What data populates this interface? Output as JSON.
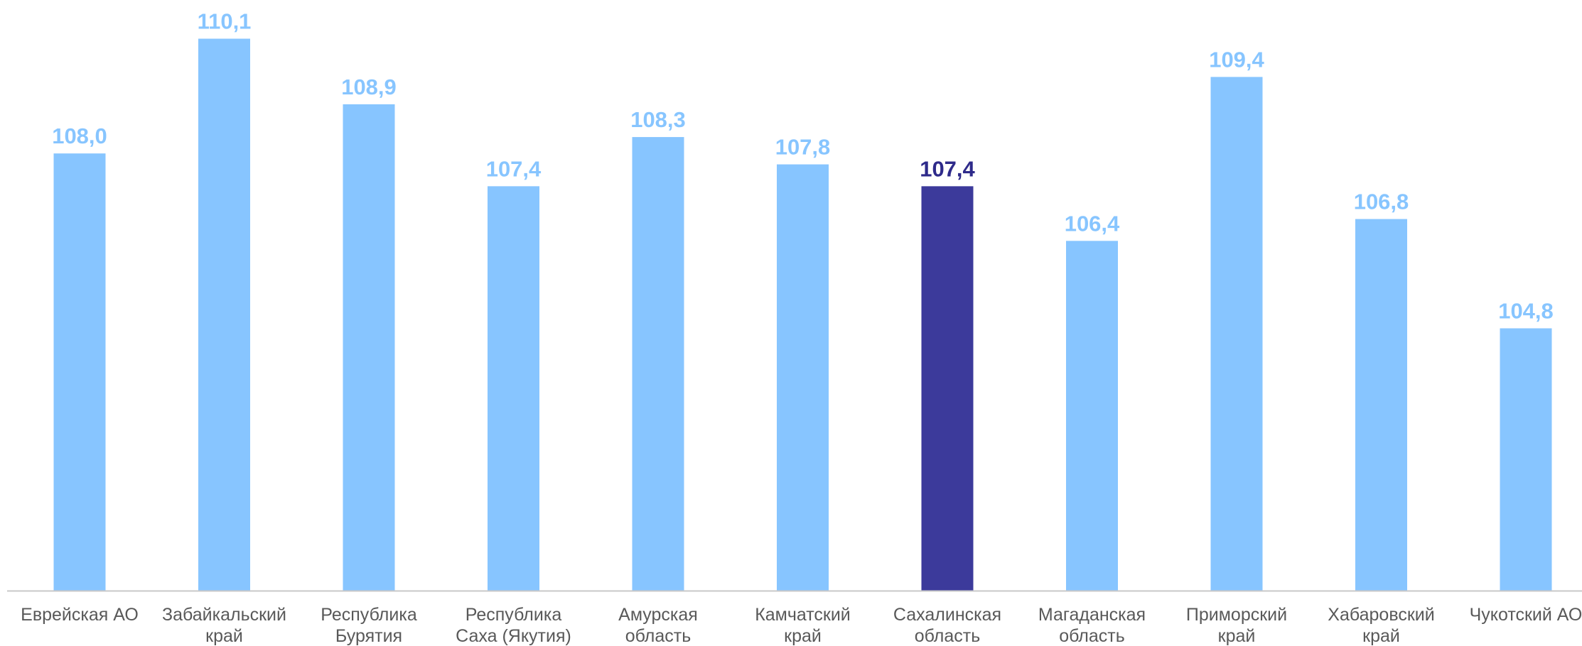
{
  "chart_data": {
    "type": "bar",
    "categories": [
      [
        "Еврейская АО"
      ],
      [
        "Забайкальский",
        "край"
      ],
      [
        "Республика",
        "Бурятия"
      ],
      [
        "Республика",
        "Саха (Якутия)"
      ],
      [
        "Амурская",
        "область"
      ],
      [
        "Камчатский",
        "край"
      ],
      [
        "Сахалинская",
        "область"
      ],
      [
        "Магаданская",
        "область"
      ],
      [
        "Приморский",
        "край"
      ],
      [
        "Хабаровский",
        "край"
      ],
      [
        "Чукотский АО"
      ]
    ],
    "values": [
      108.0,
      110.1,
      108.9,
      107.4,
      108.3,
      107.8,
      107.4,
      106.4,
      109.4,
      106.8,
      104.8
    ],
    "value_labels": [
      "108,0",
      "110,1",
      "108,9",
      "107,4",
      "108,3",
      "107,8",
      "107,4",
      "106,4",
      "109,4",
      "106,8",
      "104,8"
    ],
    "highlight_index": 6,
    "colors": {
      "bar": "#87c5ff",
      "bar_highlight": "#3c3a9b",
      "label": "#87c5ff",
      "label_highlight": "#2e2a8a",
      "category_text": "#595959",
      "axis": "#c8c8c8"
    },
    "ylim": [
      100,
      110.5
    ],
    "grid": false,
    "legend": "none"
  }
}
